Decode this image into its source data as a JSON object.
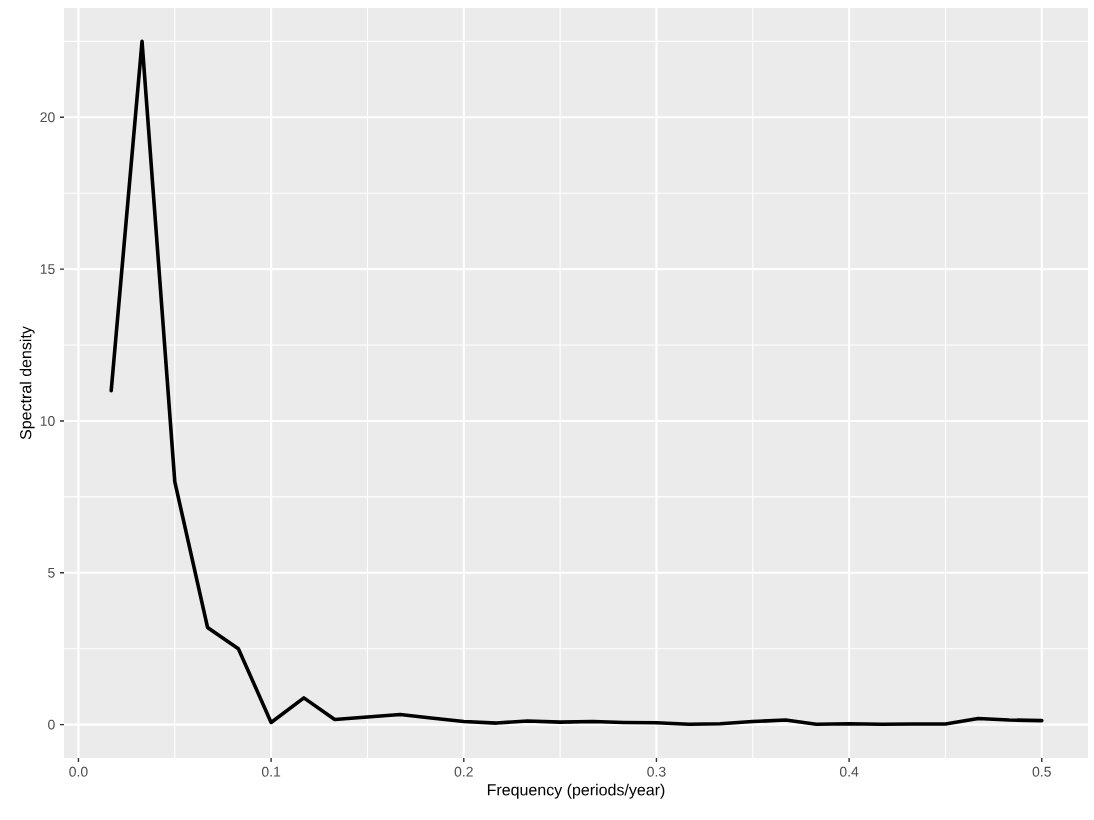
{
  "chart_data": {
    "type": "line",
    "xlabel": "Frequency (periods/year)",
    "ylabel": "Spectral density",
    "x": [
      0.017,
      0.033,
      0.05,
      0.067,
      0.083,
      0.1,
      0.117,
      0.133,
      0.15,
      0.167,
      0.183,
      0.2,
      0.217,
      0.233,
      0.25,
      0.267,
      0.283,
      0.3,
      0.317,
      0.333,
      0.35,
      0.367,
      0.383,
      0.4,
      0.417,
      0.433,
      0.45,
      0.467,
      0.483,
      0.5
    ],
    "values": [
      11.0,
      22.5,
      8.0,
      3.2,
      2.5,
      0.07,
      0.88,
      0.17,
      0.25,
      0.33,
      0.22,
      0.1,
      0.05,
      0.12,
      0.08,
      0.1,
      0.07,
      0.06,
      0.01,
      0.03,
      0.1,
      0.15,
      0.01,
      0.03,
      0.01,
      0.02,
      0.02,
      0.2,
      0.15,
      0.13
    ],
    "color": "#000000",
    "xlim": [
      -0.0075,
      0.524
    ],
    "ylim": [
      -1.1,
      23.6
    ],
    "xticks": [
      {
        "value": 0,
        "label": "0.0"
      },
      0.1,
      0.2,
      0.3,
      0.4,
      0.5
    ],
    "yticks": [
      0,
      5,
      10,
      15,
      20
    ],
    "grid": true
  }
}
